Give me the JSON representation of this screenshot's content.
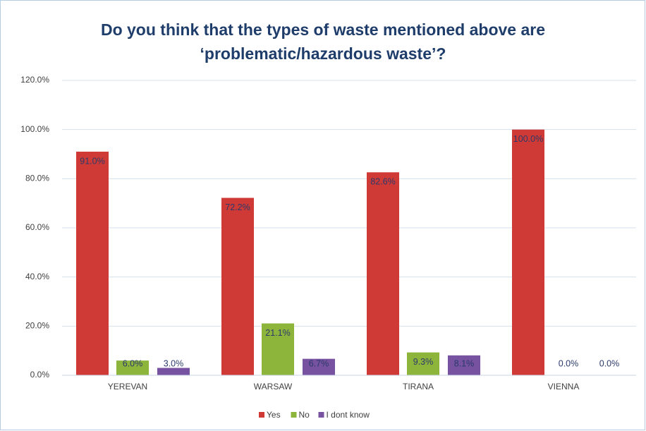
{
  "chart_data": {
    "type": "bar",
    "title": [
      "Do you think that the types of waste mentioned above are",
      "‘problematic/hazardous waste’?"
    ],
    "categories": [
      "YEREVAN",
      "WARSAW",
      "TIRANA",
      "VIENNA"
    ],
    "series": [
      {
        "name": "Yes",
        "color": "#cf3a36",
        "values": [
          91.0,
          72.2,
          82.6,
          100.0
        ],
        "value_labels": [
          "91.0%",
          "72.2%",
          "82.6%",
          "100.0%"
        ]
      },
      {
        "name": "No",
        "color": "#8db53c",
        "values": [
          6.0,
          21.1,
          9.3,
          0.0
        ],
        "value_labels": [
          "6.0%",
          "21.1%",
          "9.3%",
          "0.0%"
        ]
      },
      {
        "name": "I dont know",
        "color": "#7652a0",
        "values": [
          3.0,
          6.7,
          8.1,
          0.0
        ],
        "value_labels": [
          "3.0%",
          "6.7%",
          "8.1%",
          "0.0%"
        ]
      }
    ],
    "ylim": [
      0,
      120
    ],
    "yticks": [
      {
        "value": 0,
        "label": "0.0%"
      },
      {
        "value": 20,
        "label": "20.0%"
      },
      {
        "value": 40,
        "label": "40.0%"
      },
      {
        "value": 60,
        "label": "60.0%"
      },
      {
        "value": 80,
        "label": "80.0%"
      },
      {
        "value": 100,
        "label": "100.0%"
      },
      {
        "value": 120,
        "label": "120.0%"
      }
    ],
    "grid": true,
    "legend": "bottom"
  }
}
